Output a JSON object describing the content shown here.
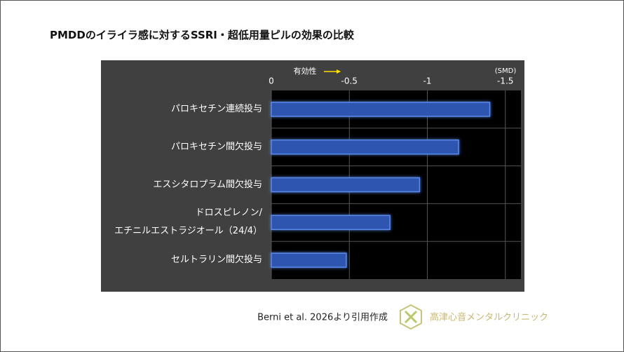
{
  "chart_data": {
    "type": "bar",
    "orientation": "horizontal",
    "title": "PMDDのイライラ感に対するSSRI・超低用量ピルの効果の比較",
    "x_label": "有効性",
    "unit_label": "(SMD)",
    "categories": [
      "パロキセチン連続投与",
      "パロキセチン間欠投与",
      "エスシタロプラム間欠投与",
      "ドロスピレノン/\nエチニルエストラジオール（24/4）",
      "セルトラリン間欠投与"
    ],
    "values": [
      -1.4,
      -1.2,
      -0.95,
      -0.76,
      -0.48
    ],
    "color": "#2f55b0",
    "xlim": [
      0,
      -1.6
    ],
    "xticks": [
      0,
      -0.5,
      -1,
      -1.5
    ],
    "grid": true
  },
  "footer": {
    "source": "Berni et al. 2026より引用作成",
    "clinic": "高津心音メンタルクリニック"
  }
}
